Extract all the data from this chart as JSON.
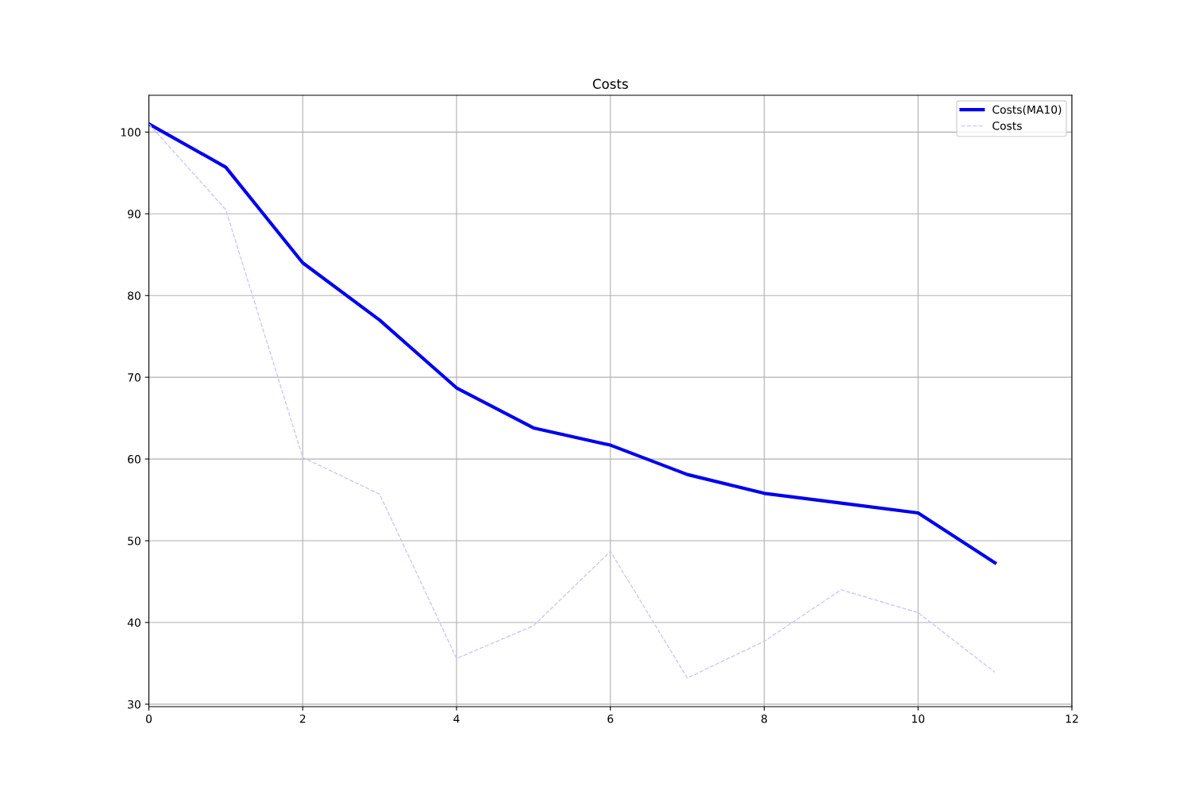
{
  "chart_data": {
    "type": "line",
    "title": "Costs",
    "x": [
      0,
      1,
      2,
      3,
      4,
      5,
      6,
      7,
      8,
      9,
      10,
      11
    ],
    "series": [
      {
        "name": "Costs(MA10)",
        "color": "#0000ee",
        "line_style": "solid",
        "values": [
          101.0,
          95.7,
          84.0,
          77.0,
          68.7,
          63.8,
          61.7,
          58.1,
          55.8,
          54.6,
          53.4,
          47.3
        ]
      },
      {
        "name": "Costs",
        "color": "#c8c8ff",
        "line_style": "dashed",
        "values": [
          101.0,
          90.5,
          60.2,
          55.7,
          35.6,
          39.6,
          48.7,
          33.2,
          37.7,
          44.0,
          41.2,
          33.9
        ]
      }
    ],
    "xlim": [
      0,
      12
    ],
    "xticks": [
      0,
      2,
      4,
      6,
      8,
      10,
      12
    ],
    "ylim": [
      29.7,
      104.5
    ],
    "yticks": [
      30,
      40,
      50,
      60,
      70,
      80,
      90,
      100
    ],
    "grid": true,
    "legend": "top right"
  }
}
